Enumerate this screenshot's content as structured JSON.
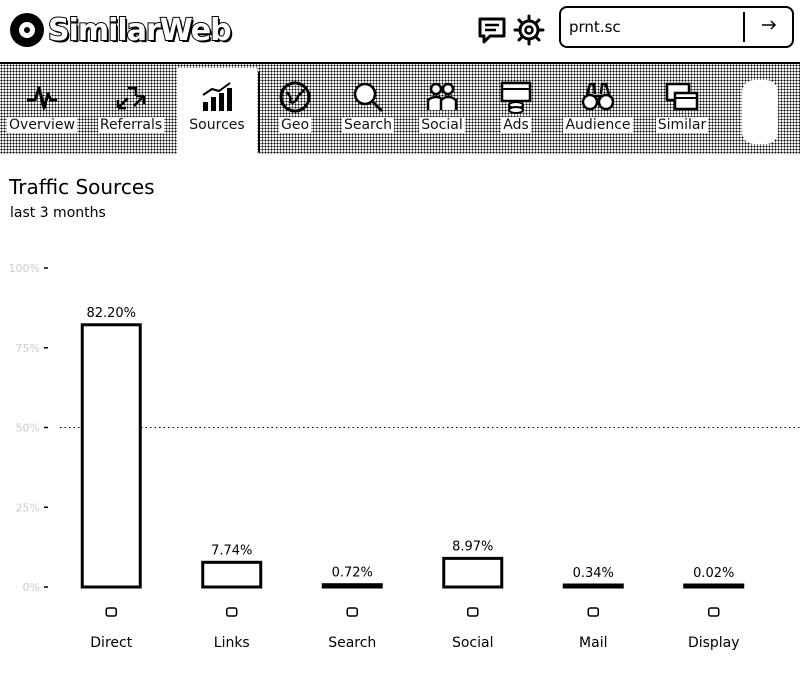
{
  "header": {
    "brand": "SimilarWeb",
    "search_value": "prnt.sc",
    "icons": [
      "chat-icon",
      "gear-icon",
      "go-icon"
    ]
  },
  "nav": {
    "items": [
      {
        "label": "Overview",
        "icon": "pulse-icon"
      },
      {
        "label": "Referrals",
        "icon": "arrows-icon"
      },
      {
        "label": "Sources",
        "icon": "bars-icon"
      },
      {
        "label": "Geo",
        "icon": "globe-icon"
      },
      {
        "label": "Search",
        "icon": "magnifier-icon"
      },
      {
        "label": "Social",
        "icon": "people-icon"
      },
      {
        "label": "Ads",
        "icon": "ads-icon"
      },
      {
        "label": "Audience",
        "icon": "binoculars-icon"
      },
      {
        "label": "Similar",
        "icon": "windows-icon"
      }
    ],
    "active": "Sources"
  },
  "page": {
    "title": "Traffic Sources",
    "subtitle": "last 3 months"
  },
  "chart_data": {
    "type": "bar",
    "categories": [
      "Direct",
      "Links",
      "Search",
      "Social",
      "Mail",
      "Display"
    ],
    "values": [
      82.2,
      7.74,
      0.72,
      8.97,
      0.34,
      0.02
    ],
    "value_labels": [
      "82.20%",
      "7.74%",
      "0.72%",
      "8.97%",
      "0.34%",
      "0.02%"
    ],
    "category_icons": [
      "direct-icon",
      "links-icon",
      "search-icon",
      "social-icon",
      "mail-icon",
      "display-icon"
    ],
    "ylim": [
      0,
      100
    ],
    "grid": "dotted",
    "legend": "none"
  },
  "colors": {
    "accent": "#000000",
    "background": "#ffffff",
    "tick": "#cccccc"
  }
}
